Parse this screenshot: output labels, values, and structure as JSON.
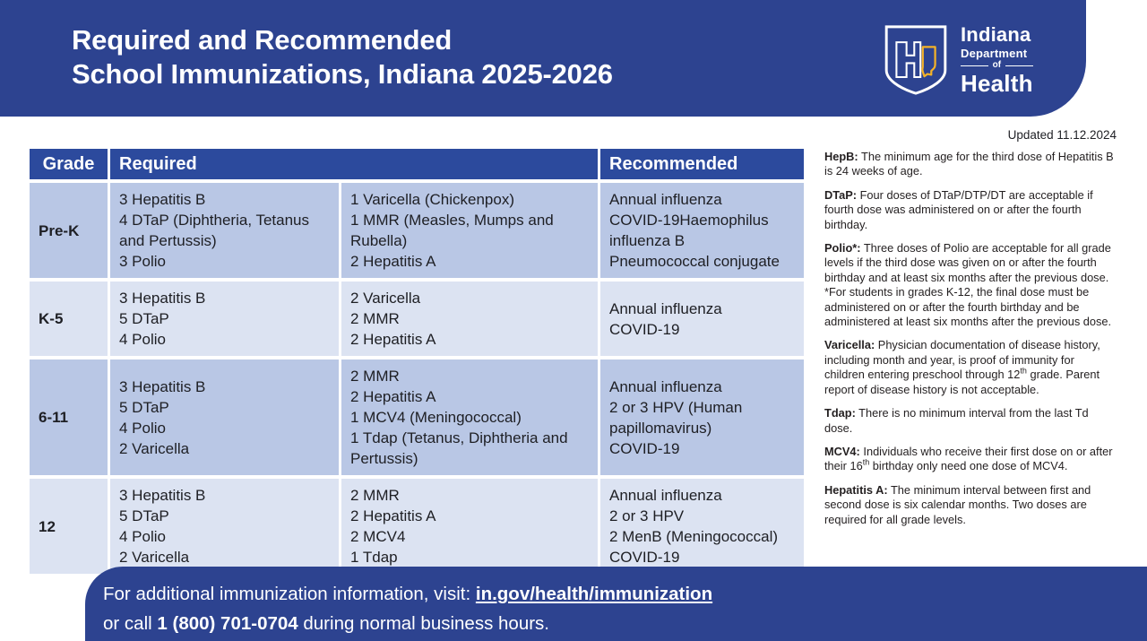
{
  "header": {
    "title_line1": "Required and Recommended",
    "title_line2": "School Immunizations, Indiana 2025-2026",
    "logo": {
      "icon": "indiana-health-shield",
      "line1": "Indiana",
      "line2": "Department",
      "line3": "of",
      "line4": "Health"
    }
  },
  "updated": "Updated 11.12.2024",
  "table": {
    "headers": {
      "grade": "Grade",
      "required": "Required",
      "recommended": "Recommended"
    },
    "rows": [
      {
        "grade": "Pre-K",
        "required_col1": [
          "3 Hepatitis B",
          "4 DTaP (Diphtheria, Tetanus and Pertussis)",
          "3 Polio"
        ],
        "required_col2": [
          "1 Varicella (Chickenpox)",
          "1 MMR (Measles, Mumps and Rubella)",
          "2 Hepatitis A"
        ],
        "recommended": [
          "Annual influenza",
          "COVID-19Haemophilus influenza B",
          "Pneumococcal conjugate"
        ]
      },
      {
        "grade": "K-5",
        "required_col1": [
          "3 Hepatitis B",
          "5 DTaP",
          "4 Polio"
        ],
        "required_col2": [
          "2 Varicella",
          "2 MMR",
          "2 Hepatitis A"
        ],
        "recommended": [
          "Annual influenza",
          "COVID-19"
        ]
      },
      {
        "grade": "6-11",
        "required_col1": [
          "3 Hepatitis B",
          "5 DTaP",
          "4 Polio",
          "2 Varicella"
        ],
        "required_col2": [
          "2 MMR",
          "2 Hepatitis A",
          "1 MCV4 (Meningococcal)",
          "1 Tdap (Tetanus, Diphtheria and Pertussis)"
        ],
        "recommended": [
          "Annual influenza",
          "2 or 3 HPV (Human papillomavirus)",
          "COVID-19"
        ]
      },
      {
        "grade": "12",
        "required_col1": [
          "3 Hepatitis B",
          "5 DTaP",
          "4 Polio",
          "2 Varicella"
        ],
        "required_col2": [
          "2 MMR",
          "2 Hepatitis A",
          "2 MCV4",
          "1 Tdap"
        ],
        "recommended": [
          "Annual influenza",
          "2 or 3 HPV",
          "2 MenB (Meningococcal)",
          "COVID-19"
        ]
      }
    ]
  },
  "notes": [
    {
      "label": "HepB:",
      "segments": [
        {
          "text": "The minimum age for the third dose of Hepatitis B is 24 weeks of age."
        }
      ]
    },
    {
      "label": "DTaP:",
      "segments": [
        {
          "text": "Four doses of DTaP/DTP/DT are acceptable if fourth dose was administered on or after the fourth birthday."
        }
      ]
    },
    {
      "label": "Polio*:",
      "segments": [
        {
          "text": "Three doses of Polio are acceptable for all grade levels if the third dose was given on or after the fourth birthday and at least six months after the previous dose."
        },
        {
          "br": true
        },
        {
          "text": "*For students in grades K-12, the final dose must be administered on or after the fourth birthday and be administered at least six months after the previous dose."
        }
      ]
    },
    {
      "label": "Varicella:",
      "segments": [
        {
          "text": "Physician documentation of disease history, including month and year, is proof of immunity for children entering preschool through 12"
        },
        {
          "sup": "th"
        },
        {
          "text": " grade. Parent report of disease history is not acceptable."
        }
      ]
    },
    {
      "label": "Tdap:",
      "segments": [
        {
          "text": "There is no minimum interval from the last Td dose."
        }
      ]
    },
    {
      "label": "MCV4:",
      "segments": [
        {
          "text": "Individuals who receive their first dose on or after their 16"
        },
        {
          "sup": "th"
        },
        {
          "text": " birthday only need one dose of MCV4."
        }
      ]
    },
    {
      "label": "Hepatitis A:",
      "segments": [
        {
          "text": "The minimum interval between first and second dose is six calendar months. Two doses are required for all grade levels."
        }
      ]
    }
  ],
  "footer": {
    "line1_prefix": "For additional immunization information, visit: ",
    "link": "in.gov/health/immunization",
    "line2_prefix": "or call ",
    "phone": "1 (800) 701-0704",
    "line2_suffix": " during normal business hours."
  },
  "colors": {
    "banner_blue": "#2d4390",
    "table_header_blue": "#2c4a9d",
    "row_dark": "#b9c7e5",
    "row_light": "#dce3f2",
    "logo_gold": "#f3b229",
    "text_dark": "#1e1f24",
    "white": "#ffffff"
  }
}
